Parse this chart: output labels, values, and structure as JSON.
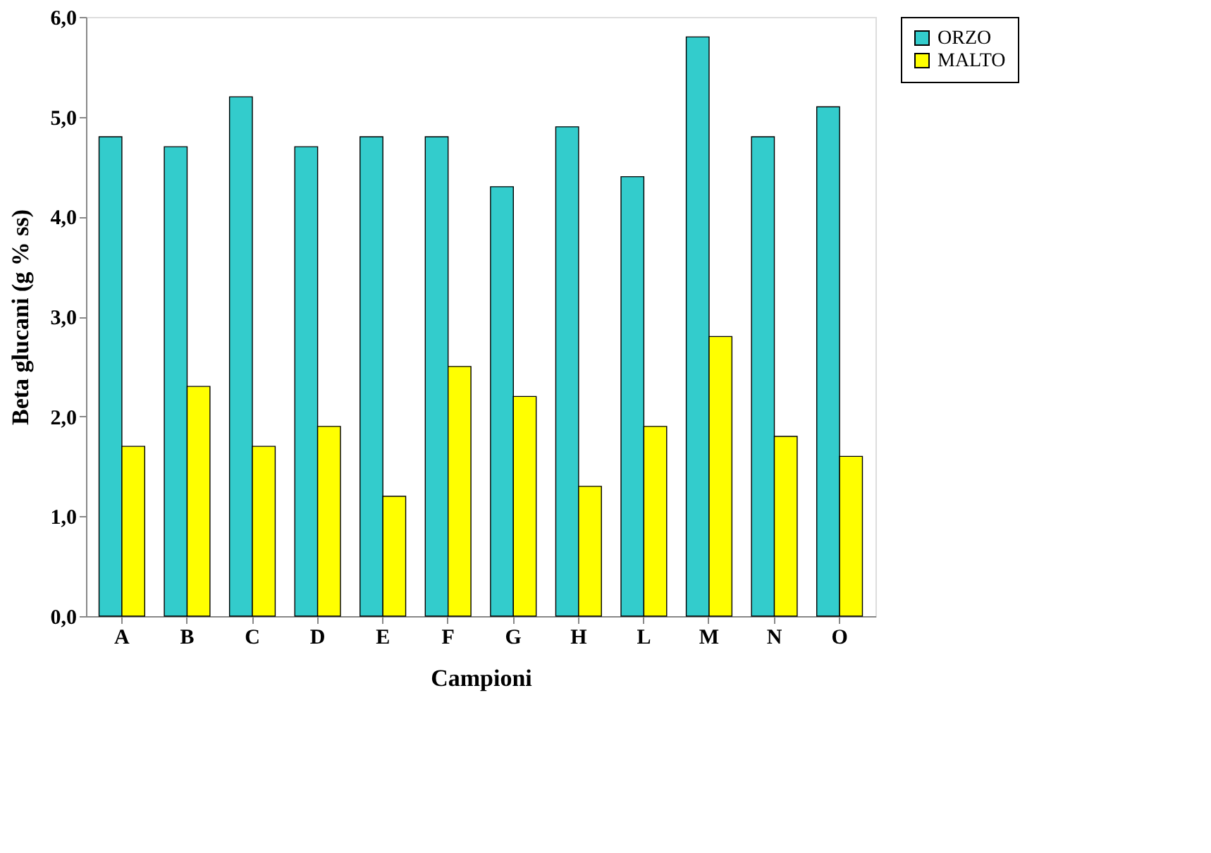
{
  "chart_data": {
    "type": "bar",
    "xlabel": "Campioni",
    "ylabel": "Beta glucani (g % ss)",
    "categories": [
      "A",
      "B",
      "C",
      "D",
      "E",
      "F",
      "G",
      "H",
      "L",
      "M",
      "N",
      "O"
    ],
    "series": [
      {
        "name": "ORZO",
        "color": "#33cccc",
        "values": [
          4.8,
          4.7,
          5.2,
          4.7,
          4.8,
          4.8,
          4.3,
          4.9,
          4.4,
          5.8,
          4.8,
          5.1
        ]
      },
      {
        "name": "MALTO",
        "color": "#ffff00",
        "values": [
          1.7,
          2.3,
          1.7,
          1.9,
          1.2,
          2.5,
          2.2,
          1.3,
          1.9,
          2.8,
          1.8,
          1.6
        ]
      }
    ],
    "ylim": [
      0,
      6
    ],
    "yticks": [
      {
        "value": 0,
        "label": "0,0"
      },
      {
        "value": 1,
        "label": "1,0"
      },
      {
        "value": 2,
        "label": "2,0"
      },
      {
        "value": 3,
        "label": "3,0"
      },
      {
        "value": 4,
        "label": "4,0"
      },
      {
        "value": 5,
        "label": "5,0"
      },
      {
        "value": 6,
        "label": "6,0"
      }
    ],
    "grid": false,
    "legend": "right"
  }
}
